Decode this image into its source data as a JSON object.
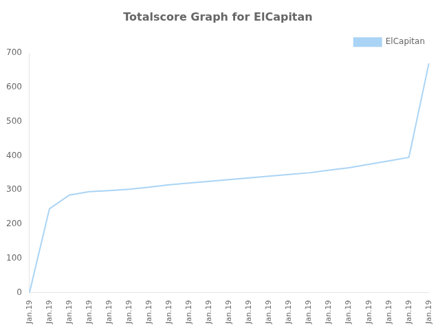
{
  "chart_data": {
    "type": "line",
    "title": "Totalscore Graph for ElCapitan",
    "categories": [
      "Jan.19",
      "Jan.19",
      "Jan.19",
      "Jan.19",
      "Jan.19",
      "Jan.19",
      "Jan.19",
      "Jan.19",
      "Jan.19",
      "Jan.19",
      "Jan.19",
      "Jan.19",
      "Jan.19",
      "Jan.19",
      "Jan.19",
      "Jan.19",
      "Jan.19",
      "Jan.19",
      "Jan.19",
      "Jan.19",
      "Jan.19"
    ],
    "series": [
      {
        "name": "ElCapitan",
        "color": "#aad4f5",
        "values": [
          0,
          245,
          285,
          295,
          298,
          302,
          308,
          315,
          320,
          325,
          330,
          335,
          340,
          345,
          350,
          358,
          365,
          375,
          385,
          395,
          670
        ]
      }
    ],
    "ylim": [
      0,
      700
    ],
    "yticks": [
      0,
      100,
      200,
      300,
      400,
      500,
      600,
      700
    ],
    "grid": false,
    "legend": "upper right"
  }
}
